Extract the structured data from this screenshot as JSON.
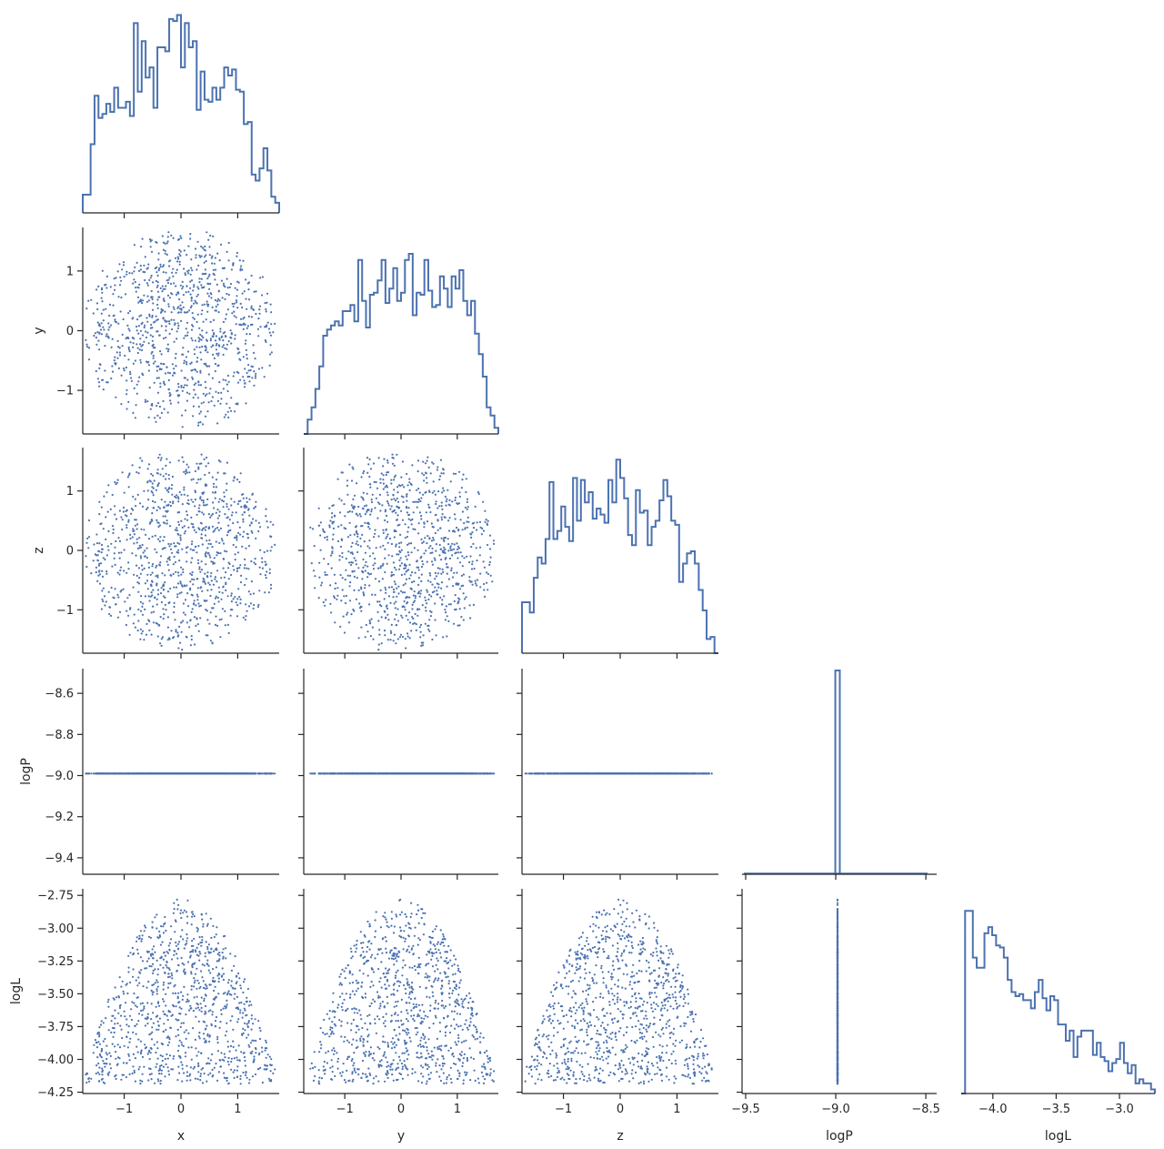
{
  "chart_data": {
    "type": "scatter",
    "layout": "corner pair plot",
    "variables": [
      "x",
      "y",
      "z",
      "logP",
      "logL"
    ],
    "series_color": "#4c72b0",
    "grid": false,
    "legend": "none",
    "axes": {
      "x": {
        "label": "x",
        "range": [
          -1.73,
          1.73
        ],
        "ticks": [
          -1,
          0,
          1
        ],
        "tick_labels": [
          "−1",
          "0",
          "1"
        ]
      },
      "y": {
        "label": "y",
        "range": [
          -1.73,
          1.73
        ],
        "ticks": [
          -1,
          0,
          1
        ],
        "tick_labels": [
          "−1",
          "0",
          "1"
        ]
      },
      "z": {
        "label": "z",
        "range": [
          -1.73,
          1.73
        ],
        "ticks": [
          -1,
          0,
          1
        ],
        "tick_labels": [
          "−1",
          "0",
          "1"
        ]
      },
      "logP": {
        "label": "logP",
        "range": [
          -9.48,
          -8.48
        ],
        "ticks": [
          -9.4,
          -9.2,
          -9.0,
          -8.8,
          -8.6
        ],
        "tick_labels": [
          "−9.4",
          "−9.2",
          "−9.0",
          "−8.8",
          "−8.6"
        ],
        "x_range": [
          -9.52,
          -8.44
        ],
        "x_ticks": [
          -9.5,
          -9.0,
          -8.5
        ],
        "x_tick_labels": [
          "−9.5",
          "−9.0",
          "−8.5"
        ]
      },
      "logL": {
        "label": "logL",
        "range": [
          -4.26,
          -2.7
        ],
        "ticks": [
          -4.25,
          -4.0,
          -3.75,
          -3.5,
          -3.25,
          -3.0,
          -2.75
        ],
        "tick_labels": [
          "−4.25",
          "−4.00",
          "−3.75",
          "−3.50",
          "−3.25",
          "−3.00",
          "−2.75"
        ],
        "x_range": [
          -4.25,
          -2.72
        ],
        "x_ticks": [
          -4.0,
          -3.5,
          -3.0
        ],
        "x_tick_labels": [
          "−4.0",
          "−3.5",
          "−3.0"
        ]
      }
    },
    "logP_value": -8.99,
    "point_count": 1000,
    "point_distribution": "uniform in unit-variance ball of radius 1.73; logL = -4.19 + 1.41*(1 - r^2/3)",
    "histograms": {
      "x": {
        "range": [
          -1.73,
          1.73
        ],
        "heights": [
          0.09,
          0.09,
          0.34,
          0.58,
          0.47,
          0.49,
          0.54,
          0.5,
          0.62,
          0.52,
          0.52,
          0.55,
          0.48,
          0.94,
          0.6,
          0.85,
          0.67,
          0.72,
          0.52,
          0.82,
          0.82,
          0.8,
          0.96,
          0.95,
          0.98,
          0.72,
          0.94,
          0.82,
          0.85,
          0.51,
          0.7,
          0.56,
          0.55,
          0.62,
          0.56,
          0.62,
          0.72,
          0.68,
          0.71,
          0.61,
          0.6,
          0.44,
          0.45,
          0.19,
          0.16,
          0.22,
          0.32,
          0.21,
          0.08,
          0.05
        ]
      },
      "y": {
        "range": [
          -1.73,
          1.73
        ],
        "heights": [
          0.0,
          0.07,
          0.13,
          0.22,
          0.33,
          0.48,
          0.51,
          0.53,
          0.55,
          0.53,
          0.6,
          0.6,
          0.63,
          0.55,
          0.85,
          0.65,
          0.52,
          0.68,
          0.69,
          0.75,
          0.85,
          0.64,
          0.71,
          0.81,
          0.65,
          0.69,
          0.85,
          0.88,
          0.58,
          0.69,
          0.68,
          0.85,
          0.7,
          0.62,
          0.63,
          0.77,
          0.71,
          0.62,
          0.77,
          0.71,
          0.8,
          0.65,
          0.58,
          0.65,
          0.49,
          0.39,
          0.28,
          0.13,
          0.09,
          0.03
        ]
      },
      "z": {
        "range": [
          -1.73,
          1.73
        ],
        "heights": [
          0.25,
          0.25,
          0.2,
          0.37,
          0.47,
          0.44,
          0.56,
          0.84,
          0.56,
          0.6,
          0.72,
          0.62,
          0.55,
          0.86,
          0.65,
          0.85,
          0.74,
          0.79,
          0.66,
          0.71,
          0.68,
          0.64,
          0.85,
          0.74,
          0.95,
          0.86,
          0.76,
          0.58,
          0.53,
          0.8,
          0.69,
          0.7,
          0.53,
          0.62,
          0.65,
          0.75,
          0.85,
          0.77,
          0.65,
          0.63,
          0.35,
          0.44,
          0.49,
          0.5,
          0.44,
          0.31,
          0.21,
          0.07,
          0.08,
          0.0
        ]
      },
      "logP": {
        "range": [
          -9.52,
          -8.44
        ],
        "bin_centers": [
          -8.99
        ],
        "bin_width": 0.025,
        "heights": [
          1.0
        ]
      },
      "logL": {
        "range": [
          -4.25,
          -2.72
        ],
        "heights": [
          0.0,
          0.9,
          0.9,
          0.67,
          0.62,
          0.62,
          0.79,
          0.82,
          0.78,
          0.73,
          0.72,
          0.67,
          0.56,
          0.5,
          0.48,
          0.49,
          0.46,
          0.46,
          0.42,
          0.5,
          0.56,
          0.47,
          0.41,
          0.48,
          0.46,
          0.34,
          0.34,
          0.26,
          0.31,
          0.18,
          0.28,
          0.31,
          0.31,
          0.31,
          0.19,
          0.25,
          0.18,
          0.16,
          0.11,
          0.15,
          0.17,
          0.25,
          0.15,
          0.1,
          0.14,
          0.05,
          0.07,
          0.05,
          0.05,
          0.02
        ]
      }
    }
  }
}
